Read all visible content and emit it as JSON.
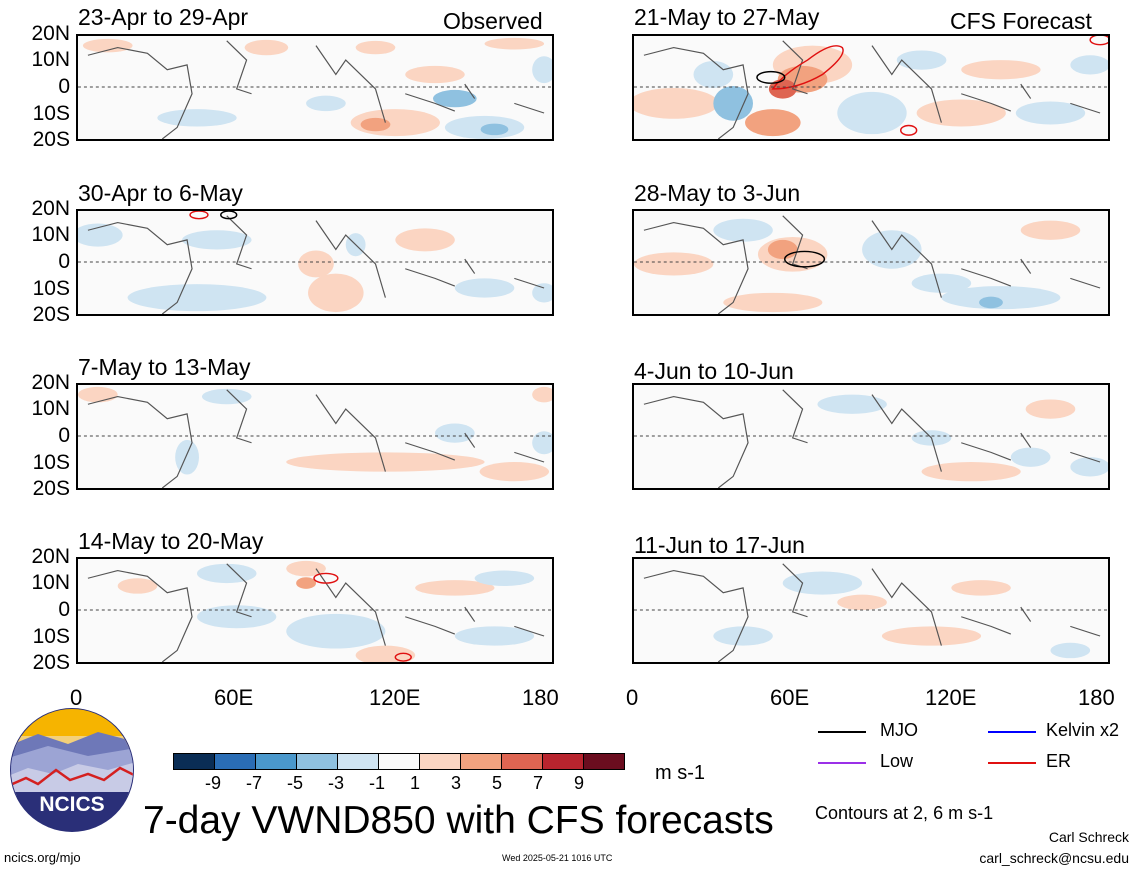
{
  "panels": [
    {
      "id": "p1",
      "title": "23-Apr to 29-Apr",
      "corner": "Observed"
    },
    {
      "id": "p2",
      "title": "30-Apr to 6-May",
      "corner": ""
    },
    {
      "id": "p3",
      "title": "7-May to 13-May",
      "corner": ""
    },
    {
      "id": "p4",
      "title": "14-May to 20-May",
      "corner": ""
    },
    {
      "id": "p5",
      "title": "21-May to 27-May",
      "corner": "CFS Forecast"
    },
    {
      "id": "p6",
      "title": "28-May to 3-Jun",
      "corner": ""
    },
    {
      "id": "p7",
      "title": "4-Jun to 10-Jun",
      "corner": ""
    },
    {
      "id": "p8",
      "title": "11-Jun to 17-Jun",
      "corner": ""
    }
  ],
  "y_ticks": [
    "20N",
    "10N",
    "0",
    "10S",
    "20S"
  ],
  "x_ticks": [
    "0",
    "60E",
    "120E",
    "180"
  ],
  "colorbar": {
    "colors": [
      "#0a2d55",
      "#2a6db5",
      "#4a98cc",
      "#8fc1e0",
      "#cfe4f2",
      "#fafafa",
      "#fbd5c2",
      "#f2a27f",
      "#de6552",
      "#b8242e",
      "#6b0d1f"
    ],
    "labels": [
      "-9",
      "-7",
      "-5",
      "-3",
      "-1",
      "1",
      "3",
      "5",
      "7",
      "9"
    ],
    "units": "m s-1"
  },
  "legend": [
    {
      "label": "MJO",
      "color": "#000000"
    },
    {
      "label": "Kelvin x2",
      "color": "#0000ff"
    },
    {
      "label": "Low",
      "color": "#9b30e8"
    },
    {
      "label": "ER",
      "color": "#e01010"
    }
  ],
  "contour_note": "Contours at 2, 6 m s-1",
  "main_title": "7-day VWND850 with CFS forecasts",
  "logo_text": "NCICS",
  "footer_left": "ncics.org/mjo",
  "footer_center": "Wed 2025-05-21 1016 UTC",
  "credit_name": "Carl Schreck",
  "credit_email": "carl_schreck@ncsu.edu"
}
